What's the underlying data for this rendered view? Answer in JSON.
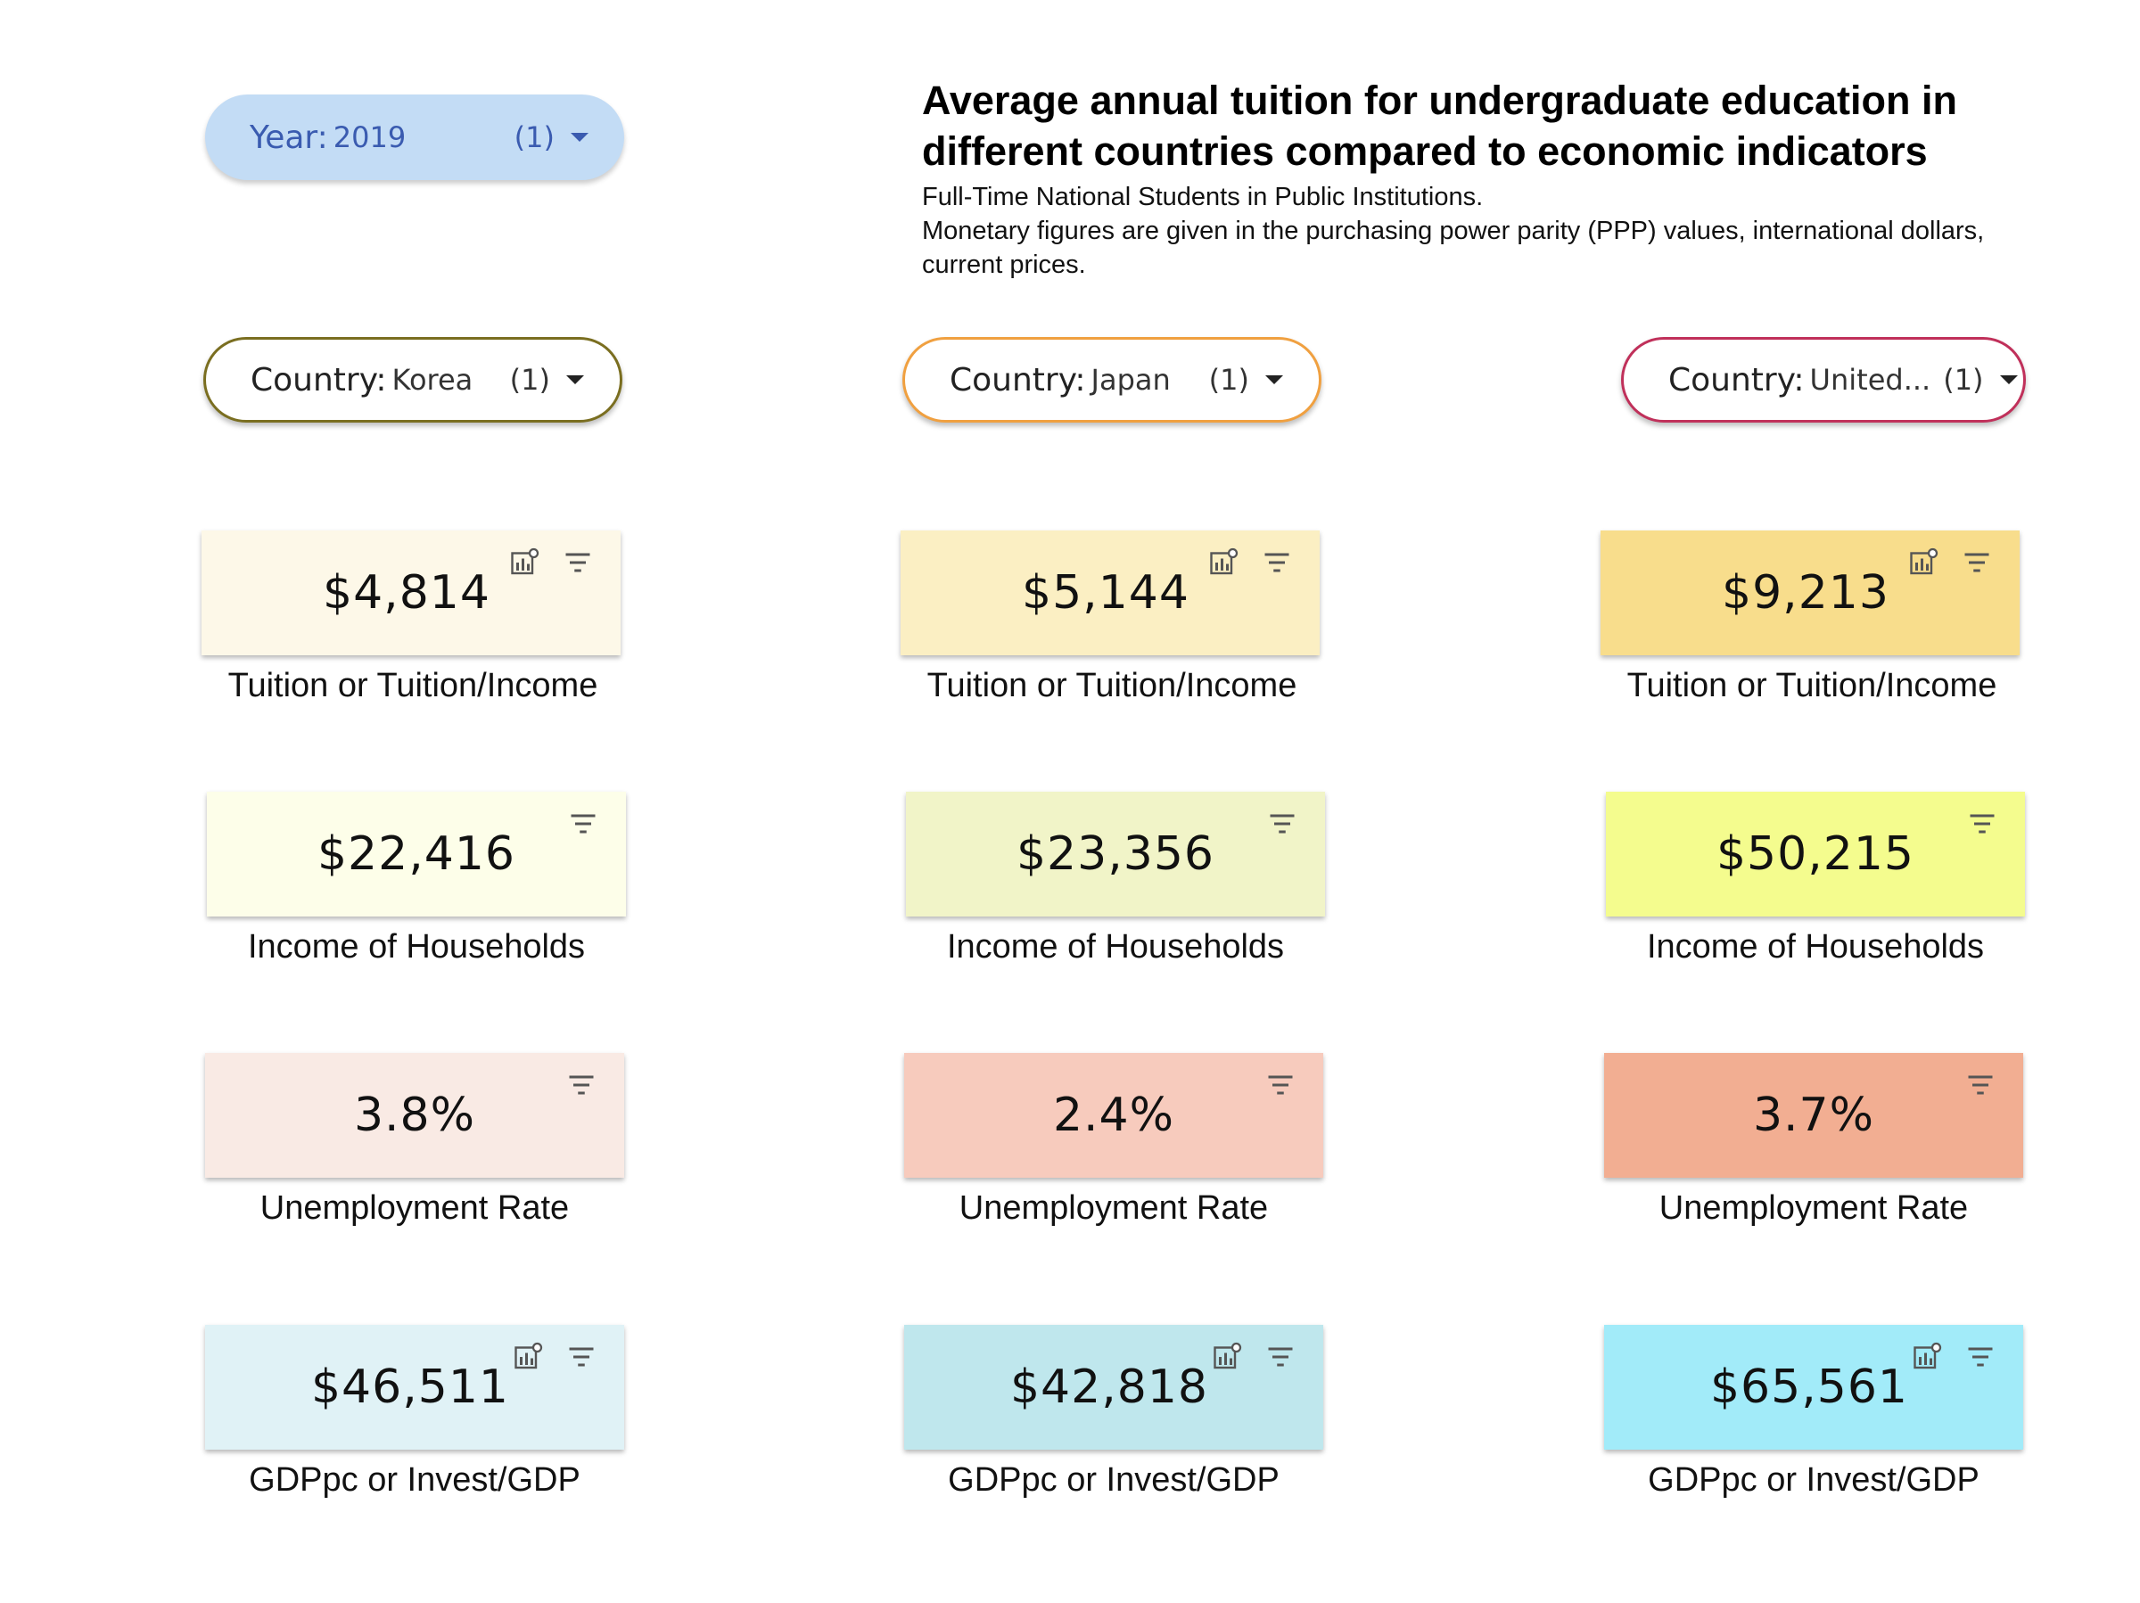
{
  "year_filter": {
    "label": "Year",
    "value": "2019",
    "count": "(1)"
  },
  "title": "Average annual tuition for undergraduate education in different countries compared to economic indicators",
  "subtitle_line1": "Full-Time National Students in Public Institutions.",
  "subtitle_line2": "Monetary figures are given in the purchasing power parity (PPP) values, international dollars, current prices.",
  "colors": {
    "korea_border": "#7a6e20",
    "japan_border": "#f0a040",
    "us_border": "#c0305a",
    "year_chip": "#c3dcf5"
  },
  "columns": [
    {
      "filter": {
        "label": "Country",
        "value": "Korea",
        "count": "(1)"
      },
      "cards": [
        {
          "value": "$4,814",
          "caption": "Tuition or Tuition/Income",
          "bg": "#fdf8e8"
        },
        {
          "value": "$22,416",
          "caption": "Income of Households",
          "bg": "#fdfee9"
        },
        {
          "value": "3.8%",
          "caption": "Unemployment Rate",
          "bg": "#f9eae4"
        },
        {
          "value": "$46,511",
          "caption": "GDPpc or Invest/GDP",
          "bg": "#e0f2f6"
        }
      ]
    },
    {
      "filter": {
        "label": "Country",
        "value": "Japan",
        "count": "(1)"
      },
      "cards": [
        {
          "value": "$5,144",
          "caption": "Tuition or Tuition/Income",
          "bg": "#fbefc3"
        },
        {
          "value": "$23,356",
          "caption": "Income of Households",
          "bg": "#f1f4c8"
        },
        {
          "value": "2.4%",
          "caption": "Unemployment Rate",
          "bg": "#f7cbbd"
        },
        {
          "value": "$42,818",
          "caption": "GDPpc or Invest/GDP",
          "bg": "#bfe7ed"
        }
      ]
    },
    {
      "filter": {
        "label": "Country",
        "value": "United...",
        "count": "(1)"
      },
      "cards": [
        {
          "value": "$9,213",
          "caption": "Tuition or Tuition/Income",
          "bg": "#f8dd8c"
        },
        {
          "value": "$50,215",
          "caption": "Income of Households",
          "bg": "#f4fc8e"
        },
        {
          "value": "3.7%",
          "caption": "Unemployment Rate",
          "bg": "#f2ae92"
        },
        {
          "value": "$65,561",
          "caption": "GDPpc or Invest/GDP",
          "bg": "#a2ebf9"
        }
      ]
    }
  ]
}
